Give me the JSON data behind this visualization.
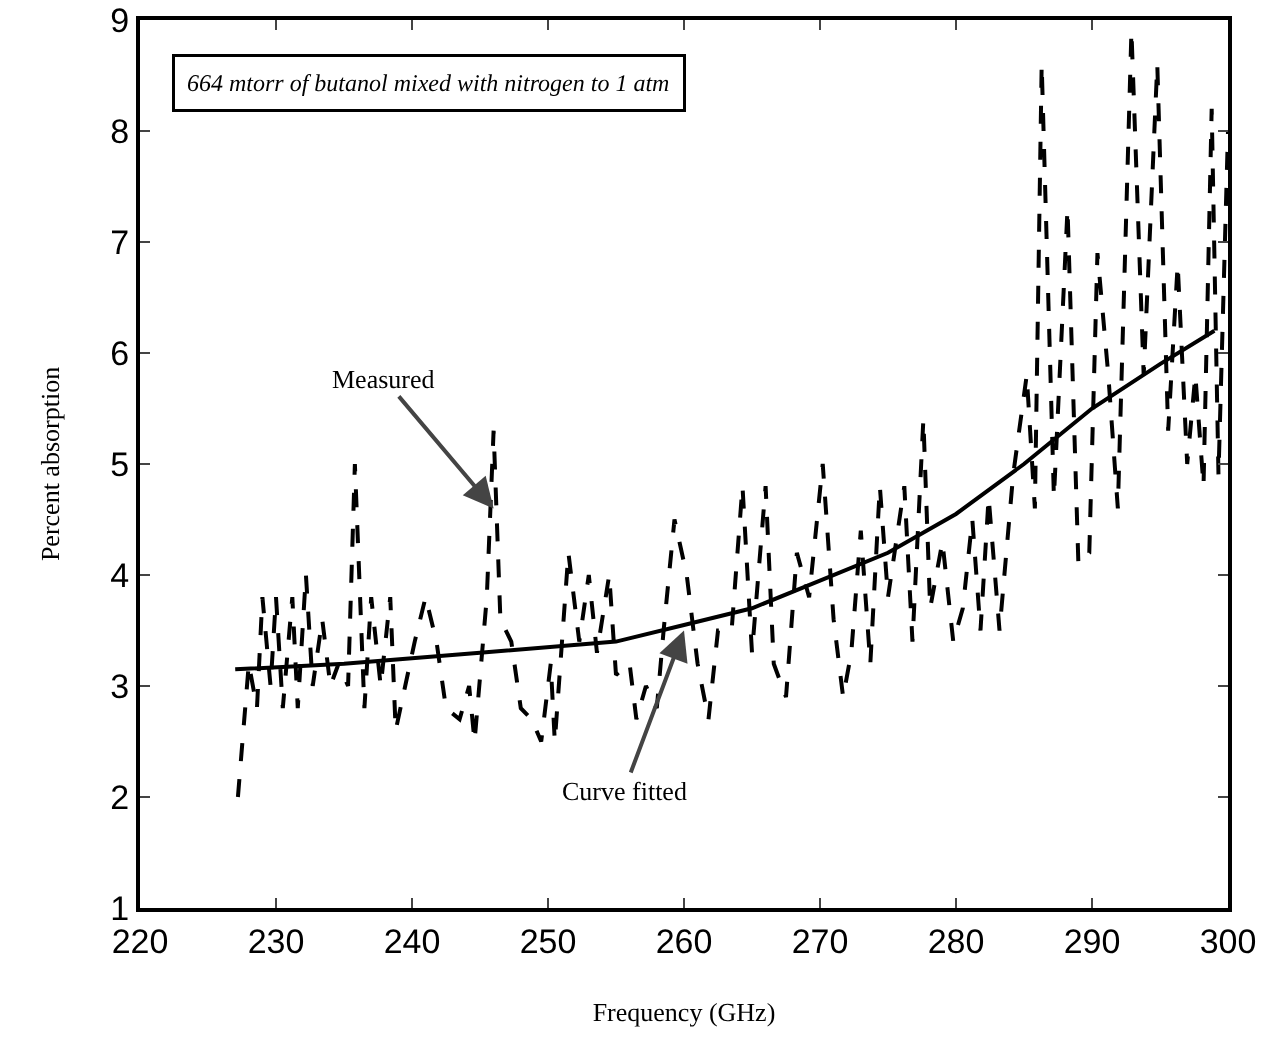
{
  "chart_data": {
    "type": "line",
    "xlabel": "Frequency (GHz)",
    "ylabel": "Percent absorption",
    "xlim": [
      220,
      300
    ],
    "xticks": [
      220,
      230,
      240,
      250,
      260,
      270,
      280,
      290,
      300
    ],
    "ylim": [
      1,
      9
    ],
    "yticks": [
      1,
      2,
      3,
      4,
      5,
      6,
      7,
      8,
      9
    ],
    "grid": false,
    "marker": "none",
    "annotations": [
      "664 mtorr of butanol mixed with nitrogen to 1 atm",
      {
        "text": "Measured",
        "x": 246,
        "y": 4.6
      },
      {
        "text": "Curve fitted",
        "x": 260,
        "y": 3.5
      }
    ],
    "series": [
      {
        "color": "#000000",
        "line_style": "dashed",
        "x": [
          227.2,
          228,
          228.6,
          229,
          229.6,
          230,
          230.5,
          231.2,
          231.6,
          232.2,
          232.7,
          233.4,
          234,
          234.6,
          235.3,
          235.8,
          236.5,
          237,
          237.7,
          238.4,
          238.8,
          239.5,
          240.2,
          241,
          241.8,
          242.5,
          243.5,
          244.2,
          244.6,
          245.5,
          246,
          246.5,
          247.3,
          248,
          248.8,
          249.5,
          250.2,
          250.5,
          251.5,
          252.3,
          253,
          253.6,
          254.5,
          255,
          256,
          256.5,
          257.2,
          258,
          258.5,
          259.3,
          260.2,
          261,
          261.8,
          262.5,
          263.5,
          264.3,
          265,
          266,
          266.6,
          267.5,
          268.3,
          269.2,
          270.2,
          271,
          271.7,
          272.3,
          273,
          273.7,
          274.4,
          275,
          276.2,
          276.8,
          277.6,
          278.1,
          279,
          279.8,
          280.5,
          281.2,
          281.8,
          282.4,
          283.2,
          284.2,
          285.2,
          285.8,
          286.3,
          287.2,
          288.2,
          289,
          289.8,
          290.4,
          291.2,
          291.9,
          292.9,
          293.8,
          294.8,
          295.6,
          296.3,
          297,
          297.6,
          298.2,
          298.8,
          299.3,
          300
        ],
        "values": [
          2.0,
          3.2,
          2.8,
          3.8,
          3.0,
          3.8,
          2.8,
          3.8,
          2.8,
          4.0,
          3.0,
          3.6,
          3.0,
          3.2,
          3.0,
          5.0,
          2.8,
          3.8,
          3.0,
          3.8,
          2.6,
          3.0,
          3.4,
          3.8,
          3.4,
          2.8,
          2.7,
          3.0,
          2.5,
          3.8,
          5.3,
          3.6,
          3.4,
          2.8,
          2.7,
          2.5,
          3.2,
          2.5,
          4.2,
          3.4,
          4.0,
          3.3,
          4.0,
          3.1,
          3.2,
          2.7,
          3.0,
          2.8,
          3.5,
          4.5,
          4.0,
          3.2,
          2.7,
          3.5,
          3.5,
          4.8,
          3.3,
          4.8,
          3.2,
          2.9,
          4.2,
          3.8,
          5.0,
          3.6,
          2.9,
          3.3,
          4.4,
          3.2,
          4.8,
          3.8,
          4.8,
          3.4,
          5.4,
          3.7,
          4.3,
          3.4,
          3.7,
          4.5,
          3.5,
          4.7,
          3.5,
          4.9,
          5.8,
          4.6,
          8.6,
          4.7,
          7.3,
          4.1,
          4.2,
          6.9,
          5.8,
          4.6,
          8.9,
          5.8,
          8.6,
          5.3,
          6.8,
          5.0,
          5.8,
          4.8,
          8.2,
          4.9,
          8.0
        ]
      },
      {
        "color": "#000000",
        "line_style": "solid",
        "x": [
          227,
          235,
          245,
          255,
          260,
          265,
          270,
          275,
          280,
          285,
          290,
          295,
          299
        ],
        "values": [
          3.15,
          3.2,
          3.3,
          3.4,
          3.55,
          3.7,
          3.95,
          4.2,
          4.55,
          5.0,
          5.5,
          5.9,
          6.2
        ]
      }
    ]
  }
}
